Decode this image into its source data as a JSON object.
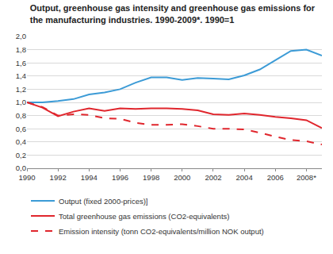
{
  "chart_data": {
    "type": "line",
    "title": "Output, greenhouse gas intensity and greenhouse gas emissions for\nthe manufacturing industries. 1990-2009*. 1990=1",
    "x": [
      1990,
      1991,
      1992,
      1993,
      1994,
      1995,
      1996,
      1997,
      1998,
      1999,
      2000,
      2001,
      2002,
      2003,
      2004,
      2005,
      2006,
      2007,
      2008,
      2009
    ],
    "series": [
      {
        "name": "Output (fixed 2000-prices)]",
        "color": "#3c9bd6",
        "line_style": "solid",
        "values": [
          1.0,
          1.0,
          1.02,
          1.05,
          1.12,
          1.15,
          1.2,
          1.3,
          1.38,
          1.38,
          1.34,
          1.37,
          1.36,
          1.35,
          1.41,
          1.5,
          1.64,
          1.78,
          1.8,
          1.71
        ]
      },
      {
        "name": "Total greenhouse gas emissions (CO2-equivalents)",
        "color": "#e0262d",
        "line_style": "solid",
        "values": [
          1.0,
          0.92,
          0.79,
          0.86,
          0.91,
          0.87,
          0.91,
          0.9,
          0.91,
          0.91,
          0.9,
          0.88,
          0.82,
          0.81,
          0.83,
          0.81,
          0.78,
          0.76,
          0.73,
          0.61
        ]
      },
      {
        "name": "Emission intensity (tonn CO2-equivalents/million NOK output)",
        "color": "#e0262d",
        "line_style": "dash",
        "values": [
          1.0,
          0.93,
          0.8,
          0.82,
          0.81,
          0.76,
          0.75,
          0.69,
          0.66,
          0.66,
          0.67,
          0.64,
          0.6,
          0.6,
          0.59,
          0.54,
          0.48,
          0.43,
          0.41,
          0.36
        ]
      }
    ],
    "xlim": [
      1990,
      2009
    ],
    "xticks": [
      1990,
      1992,
      1994,
      1996,
      1998,
      2000,
      2002,
      2004,
      2006,
      {
        "value": 2008,
        "label": "2008*"
      }
    ],
    "ylim": [
      0,
      2.0
    ],
    "yticks": [
      {
        "value": 0,
        "label": "0,0"
      },
      {
        "value": 0.2,
        "label": "0,2"
      },
      {
        "value": 0.4,
        "label": "0,4"
      },
      {
        "value": 0.6,
        "label": "0,6"
      },
      {
        "value": 0.8,
        "label": "0,8"
      },
      {
        "value": 1.0,
        "label": "1,0"
      },
      {
        "value": 1.2,
        "label": "1,2"
      },
      {
        "value": 1.4,
        "label": "1,4"
      },
      {
        "value": 1.6,
        "label": "1,6"
      },
      {
        "value": 1.8,
        "label": "1,8"
      },
      {
        "value": 2.0,
        "label": "2,0"
      }
    ],
    "grid": true,
    "legend": "bottom left"
  }
}
